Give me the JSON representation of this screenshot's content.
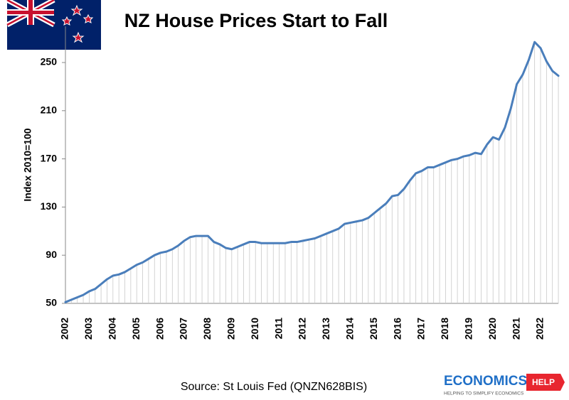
{
  "chart_data": {
    "type": "line",
    "title": "NZ House Prices Start to Fall",
    "y_label": "Index 2010=100",
    "source": "Source: St Louis Fed (QNZN628BIS)",
    "logo": {
      "name": "ECONOMICS",
      "badge": "HELP",
      "tagline": "HELPING TO SIMPLIFY ECONOMICS"
    },
    "categories": [
      "2002",
      null,
      null,
      null,
      "2003",
      null,
      null,
      null,
      "2004",
      null,
      null,
      null,
      "2005",
      null,
      null,
      null,
      "2006",
      null,
      null,
      null,
      "2007",
      null,
      null,
      null,
      "2008",
      null,
      null,
      null,
      "2009",
      null,
      null,
      null,
      "2010",
      null,
      null,
      null,
      "2011",
      null,
      null,
      null,
      "2012",
      null,
      null,
      null,
      "2013",
      null,
      null,
      null,
      "2014",
      null,
      null,
      null,
      "2015",
      null,
      null,
      null,
      "2016",
      null,
      null,
      null,
      "2017",
      null,
      null,
      null,
      "2018",
      null,
      null,
      null,
      "2019",
      null,
      null,
      null,
      "2020",
      null,
      null,
      null,
      "2021",
      null,
      null,
      null,
      "2022",
      null,
      null,
      null
    ],
    "series": [
      {
        "name": "Index 2010=100",
        "color": "#4a7ebb",
        "values": [
          51,
          53,
          55,
          57,
          60,
          62,
          66,
          70,
          73,
          74,
          76,
          79,
          82,
          84,
          87,
          90,
          92,
          93,
          95,
          98,
          102,
          105,
          106,
          106,
          106,
          101,
          99,
          96,
          95,
          97,
          99,
          101,
          101,
          100,
          100,
          100,
          100,
          100,
          101,
          101,
          102,
          103,
          104,
          106,
          108,
          110,
          112,
          116,
          117,
          118,
          119,
          121,
          125,
          129,
          133,
          139,
          140,
          145,
          152,
          158,
          160,
          163,
          163,
          165,
          167,
          169,
          170,
          172,
          173,
          175,
          174,
          182,
          188,
          186,
          196,
          212,
          232,
          240,
          252,
          267,
          262,
          251,
          243,
          239
        ]
      }
    ],
    "ylim": [
      50,
      280
    ],
    "yticks": [
      50,
      90,
      130,
      170,
      210,
      250
    ],
    "drop_lines": true
  }
}
